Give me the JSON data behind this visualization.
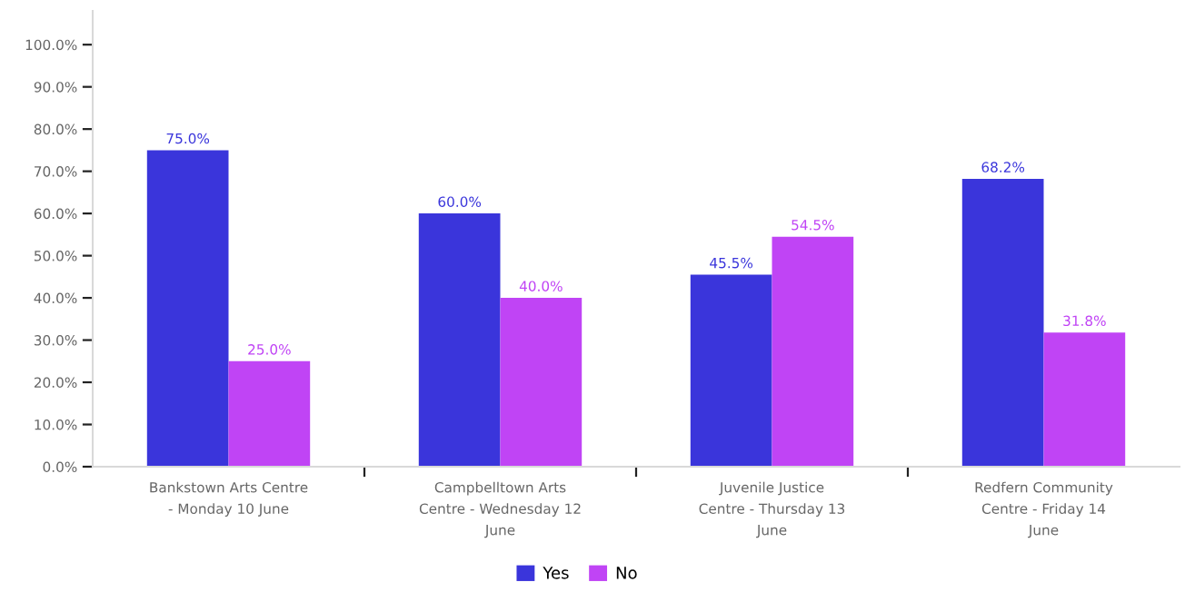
{
  "chart_data": {
    "type": "bar",
    "categories": [
      "Bankstown Arts Centre - Monday 10 June",
      "Campbelltown Arts Centre - Wednesday 12 June",
      "Juvenile Justice Centre - Thursday 13 June",
      "Redfern Community Centre - Friday 14 June"
    ],
    "series": [
      {
        "name": "Yes",
        "color": "#3a35db",
        "values": [
          75.0,
          60.0,
          45.5,
          68.2
        ],
        "value_labels": [
          "75.0%",
          "60.0%",
          "45.5%",
          "68.2%"
        ]
      },
      {
        "name": "No",
        "color": "#c044f5",
        "values": [
          25.0,
          40.0,
          54.5,
          31.8
        ],
        "value_labels": [
          "25.0%",
          "40.0%",
          "54.5%",
          "31.8%"
        ]
      }
    ],
    "ylim": [
      0,
      108
    ],
    "yticks": [
      {
        "value": 0,
        "label": "0.0%"
      },
      {
        "value": 10,
        "label": "10.0%"
      },
      {
        "value": 20,
        "label": "20.0%"
      },
      {
        "value": 30,
        "label": "30.0%"
      },
      {
        "value": 40,
        "label": "40.0%"
      },
      {
        "value": 50,
        "label": "50.0%"
      },
      {
        "value": 60,
        "label": "60.0%"
      },
      {
        "value": 70,
        "label": "70.0%"
      },
      {
        "value": 80,
        "label": "80.0%"
      },
      {
        "value": 90,
        "label": "90.0%"
      },
      {
        "value": 100,
        "label": "100.0%"
      }
    ],
    "grid": false,
    "legend": "bottom"
  }
}
